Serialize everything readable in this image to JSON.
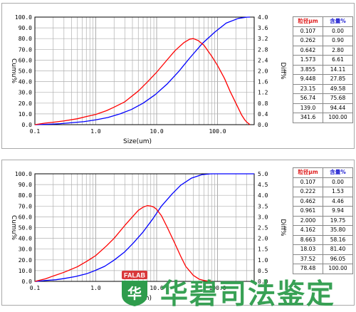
{
  "chart_data": [
    {
      "type": "line",
      "xlabel": "Size(um)",
      "ylabel_left": "Cumu%",
      "ylabel_right": "Diff%",
      "xscale": "log",
      "xlim": [
        0.1,
        400
      ],
      "ylim_left": [
        0,
        100
      ],
      "ylim_right": [
        0,
        4.0
      ],
      "x_ticks": [
        0.1,
        1.0,
        10.0,
        100.0
      ],
      "x_tick_labels": [
        "0.1",
        "1.0",
        "10.0",
        "100.0"
      ],
      "y_left_tick_labels": [
        "0.0",
        "10.0",
        "20.0",
        "30.0",
        "40.0",
        "50.0",
        "60.0",
        "70.0",
        "80.0",
        "90.0",
        "100.0"
      ],
      "y_right_tick_labels": [
        "0.0",
        "0.4",
        "0.8",
        "1.2",
        "1.6",
        "2.0",
        "2.4",
        "2.8",
        "3.2",
        "3.6",
        "4.0"
      ],
      "grid": true,
      "series": [
        {
          "color": "#0000ff",
          "axis": "left",
          "x": [
            0.1,
            0.107,
            0.2,
            0.262,
            0.4,
            0.642,
            1.0,
            1.573,
            2.5,
            3.855,
            6.0,
            9.448,
            15.0,
            23.15,
            35.0,
            56.74,
            90.0,
            139.0,
            220.0,
            300.0,
            341.6
          ],
          "y": [
            0.0,
            0.0,
            0.6,
            0.9,
            1.8,
            2.8,
            4.5,
            6.61,
            10.0,
            14.11,
            20.0,
            27.85,
            38.0,
            49.58,
            62.0,
            75.68,
            86.0,
            94.44,
            98.8,
            99.9,
            100.0
          ]
        },
        {
          "color": "#ff0000",
          "axis": "right",
          "x": [
            0.1,
            0.15,
            0.2,
            0.3,
            0.5,
            0.7,
            1.0,
            1.5,
            2.0,
            3.0,
            5.0,
            7.0,
            10.0,
            15.0,
            20.0,
            28.0,
            35.0,
            40.0,
            48.0,
            60.0,
            80.0,
            100.0,
            130.0,
            160.0,
            200.0,
            250.0,
            280.0,
            300.0,
            341.6
          ],
          "y": [
            0.0,
            0.06,
            0.09,
            0.14,
            0.22,
            0.3,
            0.38,
            0.52,
            0.65,
            0.85,
            1.25,
            1.58,
            1.95,
            2.42,
            2.75,
            3.05,
            3.18,
            3.2,
            3.13,
            2.95,
            2.55,
            2.2,
            1.72,
            1.25,
            0.8,
            0.35,
            0.18,
            0.1,
            0.0
          ]
        }
      ],
      "table": {
        "headers": [
          "粒径μm",
          "含量%"
        ],
        "rows": [
          [
            "0.107",
            "0.00"
          ],
          [
            "0.262",
            "0.90"
          ],
          [
            "0.642",
            "2.80"
          ],
          [
            "1.573",
            "6.61"
          ],
          [
            "3.855",
            "14.11"
          ],
          [
            "9.448",
            "27.85"
          ],
          [
            "23.15",
            "49.58"
          ],
          [
            "56.74",
            "75.68"
          ],
          [
            "139.0",
            "94.44"
          ],
          [
            "341.6",
            "100.00"
          ]
        ]
      }
    },
    {
      "type": "line",
      "xlabel": "Size(um)",
      "ylabel_left": "Cumu%",
      "ylabel_right": "Diff%",
      "xscale": "log",
      "xlim": [
        0.1,
        400
      ],
      "ylim_left": [
        0,
        100
      ],
      "ylim_right": [
        0,
        5.0
      ],
      "x_ticks": [
        0.1,
        1.0,
        10.0,
        100.0
      ],
      "x_tick_labels": [
        "0.1",
        "1.0",
        "10.0",
        "100.0"
      ],
      "y_left_tick_labels": [
        "0.0",
        "10.0",
        "20.0",
        "30.0",
        "40.0",
        "50.0",
        "60.0",
        "70.0",
        "80.0",
        "90.0",
        "100.0"
      ],
      "y_right_tick_labels": [
        "0.0",
        "0.5",
        "1.0",
        "1.5",
        "2.0",
        "2.5",
        "3.0",
        "3.5",
        "4.0",
        "4.5",
        "5.0"
      ],
      "grid": true,
      "series": [
        {
          "color": "#0000ff",
          "axis": "left",
          "x": [
            0.1,
            0.107,
            0.15,
            0.222,
            0.3,
            0.462,
            0.7,
            0.961,
            1.4,
            2.0,
            3.0,
            4.162,
            6.0,
            8.663,
            12.0,
            18.03,
            25.0,
            37.52,
            55.0,
            78.48,
            150.0,
            400.0
          ],
          "y": [
            0.0,
            0.0,
            0.8,
            1.53,
            2.6,
            4.46,
            7.0,
            9.94,
            14.0,
            19.75,
            27.5,
            35.8,
            46.0,
            58.16,
            70.0,
            81.4,
            89.5,
            96.05,
            99.2,
            100.0,
            100.0,
            100.0
          ]
        },
        {
          "color": "#ff0000",
          "axis": "right",
          "x": [
            0.1,
            0.15,
            0.2,
            0.3,
            0.5,
            0.7,
            1.0,
            1.5,
            2.0,
            3.0,
            4.0,
            5.0,
            6.0,
            7.0,
            8.0,
            9.0,
            10.0,
            12.0,
            15.0,
            20.0,
            25.0,
            30.0,
            40.0,
            50.0,
            60.0,
            70.0,
            80.0
          ],
          "y": [
            0.0,
            0.12,
            0.25,
            0.42,
            0.68,
            0.92,
            1.2,
            1.65,
            2.0,
            2.6,
            3.0,
            3.3,
            3.45,
            3.52,
            3.5,
            3.45,
            3.35,
            3.05,
            2.5,
            1.75,
            1.15,
            0.7,
            0.28,
            0.1,
            0.04,
            0.01,
            0.0
          ]
        }
      ],
      "table": {
        "headers": [
          "粒径μm",
          "含量%"
        ],
        "rows": [
          [
            "0.107",
            "0.00"
          ],
          [
            "0.222",
            "1.53"
          ],
          [
            "0.462",
            "4.46"
          ],
          [
            "0.961",
            "9.94"
          ],
          [
            "2.000",
            "19.75"
          ],
          [
            "4.162",
            "35.80"
          ],
          [
            "8.663",
            "58.16"
          ],
          [
            "18.03",
            "81.40"
          ],
          [
            "37.52",
            "96.05"
          ],
          [
            "78.48",
            "100.00"
          ]
        ]
      }
    }
  ],
  "watermark": {
    "logo_text": "FALAB",
    "logo_glyph": "华",
    "text": "华碧司法鉴定",
    "color": "#2e9c4c",
    "logo_color": "#d9383a"
  }
}
